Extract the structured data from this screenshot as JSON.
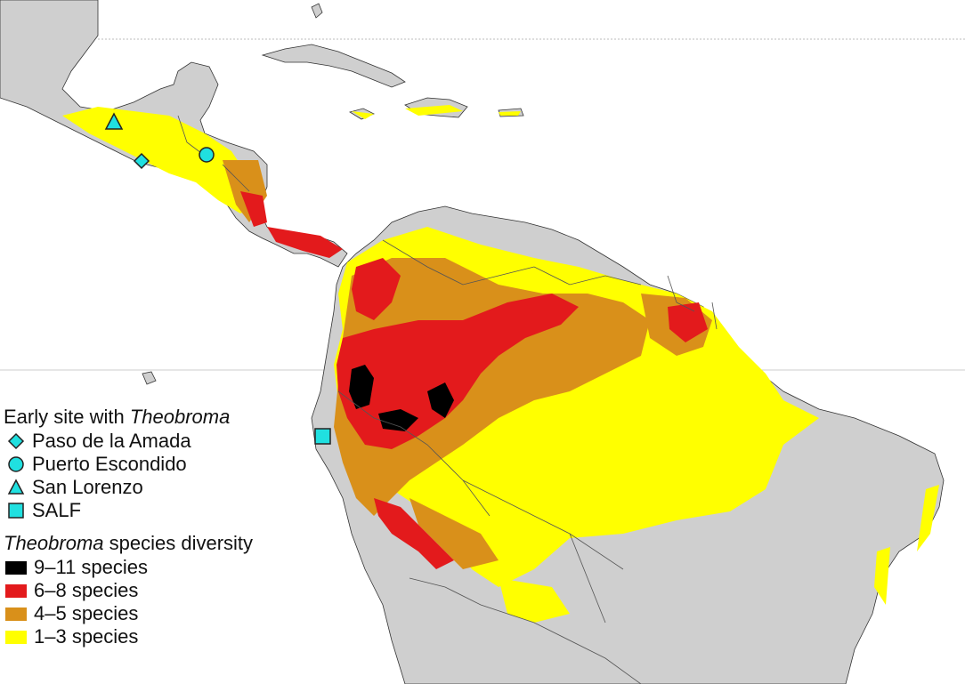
{
  "legend": {
    "sites_title_prefix": "Early site with ",
    "sites_title_taxon": "Theobroma",
    "sites": [
      {
        "label": "Paso de la Amada",
        "symbol": "diamond"
      },
      {
        "label": "Puerto Escondido",
        "symbol": "circle"
      },
      {
        "label": "San Lorenzo",
        "symbol": "triangle"
      },
      {
        "label": "SALF",
        "symbol": "square"
      }
    ],
    "diversity_title_taxon": "Theobroma",
    "diversity_title_suffix": " species diversity",
    "diversity_classes": [
      {
        "label": "9–11 species",
        "color": "#000000"
      },
      {
        "label": "6–8 species",
        "color": "#e31a1c"
      },
      {
        "label": "4–5 species",
        "color": "#d9901a"
      },
      {
        "label": "1–3 species",
        "color": "#ffff00"
      }
    ]
  },
  "colors": {
    "land": "#cfcfcf",
    "ocean": "#ffffff",
    "border": "#555555",
    "site_marker": "#20e0e0"
  }
}
